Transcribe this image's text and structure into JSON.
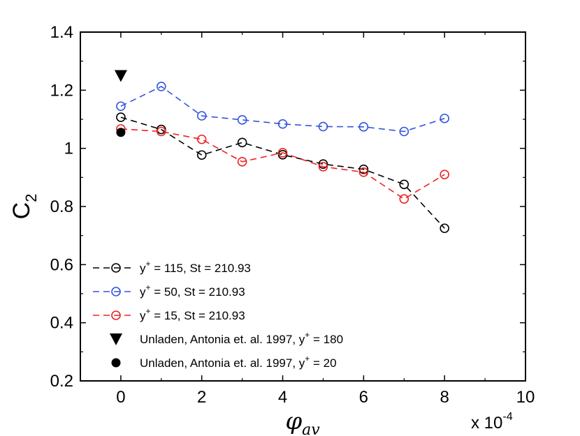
{
  "chart_data": {
    "type": "line",
    "title": "",
    "xlabel": "φ",
    "xlabel_sub": "av",
    "ylabel": "C",
    "ylabel_sub": "2",
    "x_multiplier": "x 10",
    "x_multiplier_exp": "-4",
    "xlim": [
      -1,
      10
    ],
    "ylim": [
      0.2,
      1.4
    ],
    "xticks": [
      0,
      2,
      4,
      6,
      8,
      10
    ],
    "xtick_labels": [
      "0",
      "2",
      "4",
      "6",
      "8",
      "10"
    ],
    "yticks": [
      0.2,
      0.4,
      0.6,
      0.8,
      1.0,
      1.2,
      1.4
    ],
    "ytick_labels": [
      "0.2",
      "0.4",
      "0.6",
      "0.8",
      "1",
      "1.2",
      "1.4"
    ],
    "grid": false,
    "legend_position": "bottom-left",
    "series": [
      {
        "name": "y+ = 115,  St = 210.93",
        "legend_main": "y",
        "legend_sup": "+",
        "legend_rest": " = 115,  St = 210.93",
        "color": "#000000",
        "marker": "open-circle",
        "style": "dashed",
        "x": [
          0,
          1,
          2,
          3,
          4,
          5,
          6,
          7,
          8
        ],
        "values": [
          1.107,
          1.065,
          0.977,
          1.02,
          0.978,
          0.946,
          0.928,
          0.876,
          0.725
        ]
      },
      {
        "name": "y+ = 50,  St = 210.93",
        "legend_main": "y",
        "legend_sup": "+",
        "legend_rest": " = 50,  St = 210.93",
        "color": "#3355dd",
        "marker": "open-circle",
        "style": "dashed",
        "x": [
          0,
          1,
          2,
          3,
          4,
          5,
          6,
          7,
          8
        ],
        "values": [
          1.145,
          1.213,
          1.112,
          1.098,
          1.084,
          1.075,
          1.074,
          1.058,
          1.103
        ]
      },
      {
        "name": "y+ = 15,  St = 210.93",
        "legend_main": "y",
        "legend_sup": "+",
        "legend_rest": " = 15,  St = 210.93",
        "color": "#ee2222",
        "marker": "open-circle",
        "style": "dashed",
        "x": [
          0,
          1,
          2,
          3,
          4,
          5,
          6,
          7,
          8
        ],
        "values": [
          1.067,
          1.058,
          1.031,
          0.954,
          0.985,
          0.937,
          0.918,
          0.826,
          0.91
        ]
      },
      {
        "name": "Unladen, Antonia et. al. 1997, y+ = 180",
        "legend_main": "Unladen, Antonia et. al. 1997, y",
        "legend_sup": "+",
        "legend_rest": " = 180",
        "color": "#000000",
        "marker": "filled-triangle-down",
        "style": "none",
        "x": [
          0
        ],
        "values": [
          1.25
        ]
      },
      {
        "name": "Unladen, Antonia et. al. 1997, y+ = 20",
        "legend_main": "Unladen, Antonia et. al. 1997, y",
        "legend_sup": "+",
        "legend_rest": " = 20",
        "color": "#000000",
        "marker": "filled-circle",
        "style": "none",
        "x": [
          0
        ],
        "values": [
          1.055
        ]
      }
    ]
  }
}
